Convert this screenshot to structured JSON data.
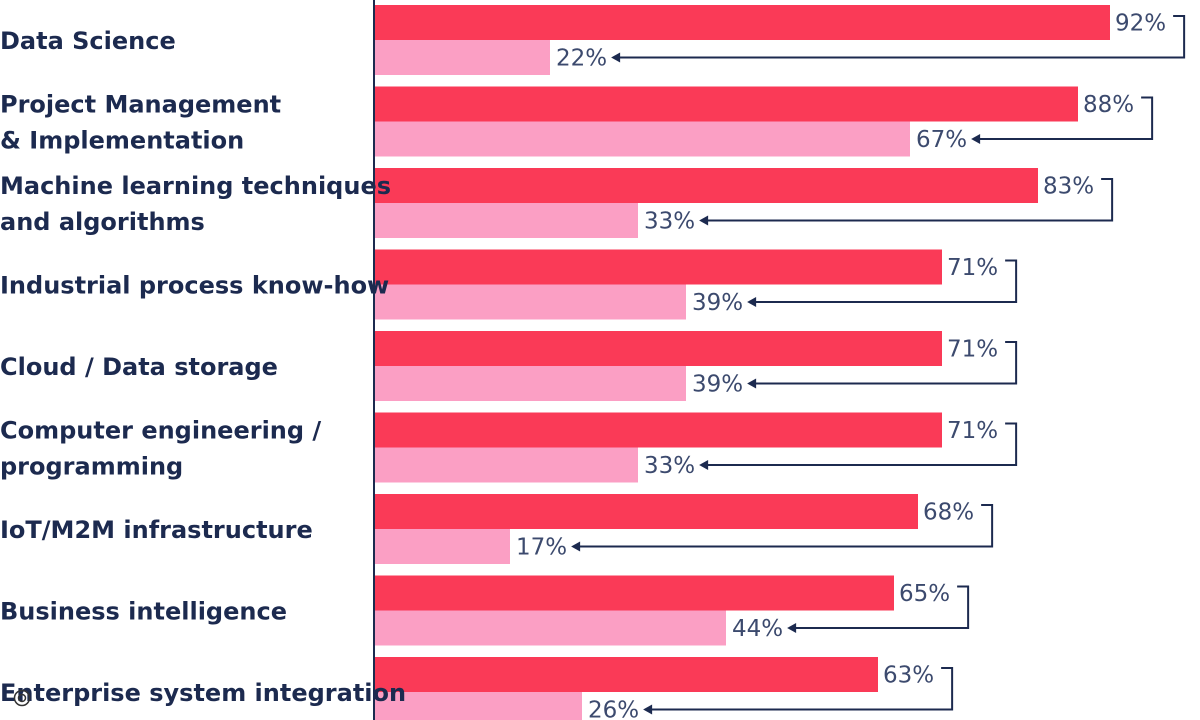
{
  "colors": {
    "primary_bar": "#fa3a57",
    "secondary_bar": "#fb9fc4",
    "axis": "#1c2a4f",
    "connector": "#1c2a4f",
    "label": "#1c2a4f",
    "value_label": "#3c4a6e",
    "icon": "#333333"
  },
  "watermark": {
    "icon": "target-icon"
  },
  "chart_data": {
    "type": "bar",
    "orientation": "horizontal",
    "xlim": [
      0,
      100
    ],
    "grid": false,
    "legend": "none",
    "categories": [
      [
        "Data Science"
      ],
      [
        "Project Management",
        "& Implementation"
      ],
      [
        "Machine learning techniques",
        "and algorithms"
      ],
      [
        "Industrial process know-how"
      ],
      [
        "Cloud / Data storage"
      ],
      [
        "Computer engineering /",
        "programming"
      ],
      [
        "IoT/M2M infrastructure"
      ],
      [
        "Business intelligence"
      ],
      [
        "Enterprise system integration"
      ]
    ],
    "series": [
      {
        "values": [
          92,
          88,
          83,
          71,
          71,
          71,
          68,
          65,
          63
        ],
        "labels": [
          "92%",
          "88%",
          "83%",
          "71%",
          "71%",
          "71%",
          "68%",
          "65%",
          "63%"
        ]
      },
      {
        "values": [
          22,
          67,
          33,
          39,
          39,
          33,
          17,
          44,
          26
        ],
        "labels": [
          "22%",
          "67%",
          "33%",
          "39%",
          "39%",
          "33%",
          "17%",
          "44%",
          "26%"
        ]
      }
    ]
  }
}
